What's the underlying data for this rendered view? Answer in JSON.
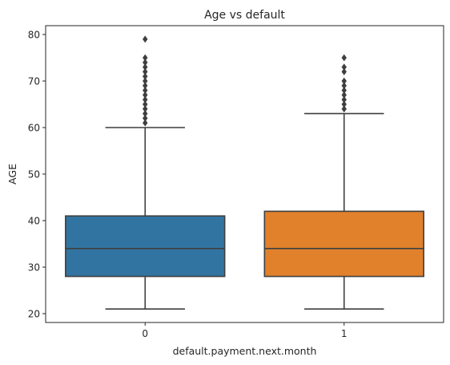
{
  "chart_data": {
    "type": "box",
    "title": "Age vs default",
    "xlabel": "default.payment.next.month",
    "ylabel": "AGE",
    "ylim": [
      18.1,
      81.9
    ],
    "yticks": [
      20,
      30,
      40,
      50,
      60,
      70,
      80
    ],
    "grid": false,
    "legend": "none",
    "categories": [
      "0",
      "1"
    ],
    "boxes": [
      {
        "category": "0",
        "color": "#3274a1",
        "whisker_low": 21,
        "q1": 28,
        "median": 34,
        "q3": 41,
        "whisker_high": 60,
        "outliers": [
          61,
          62,
          63,
          64,
          65,
          66,
          67,
          68,
          69,
          70,
          71,
          72,
          73,
          74,
          75,
          79
        ]
      },
      {
        "category": "1",
        "color": "#e1812c",
        "whisker_low": 21,
        "q1": 28,
        "median": 34,
        "q3": 42,
        "whisker_high": 63,
        "outliers": [
          64,
          65,
          66,
          67,
          68,
          69,
          70,
          72,
          73,
          75
        ]
      }
    ]
  }
}
